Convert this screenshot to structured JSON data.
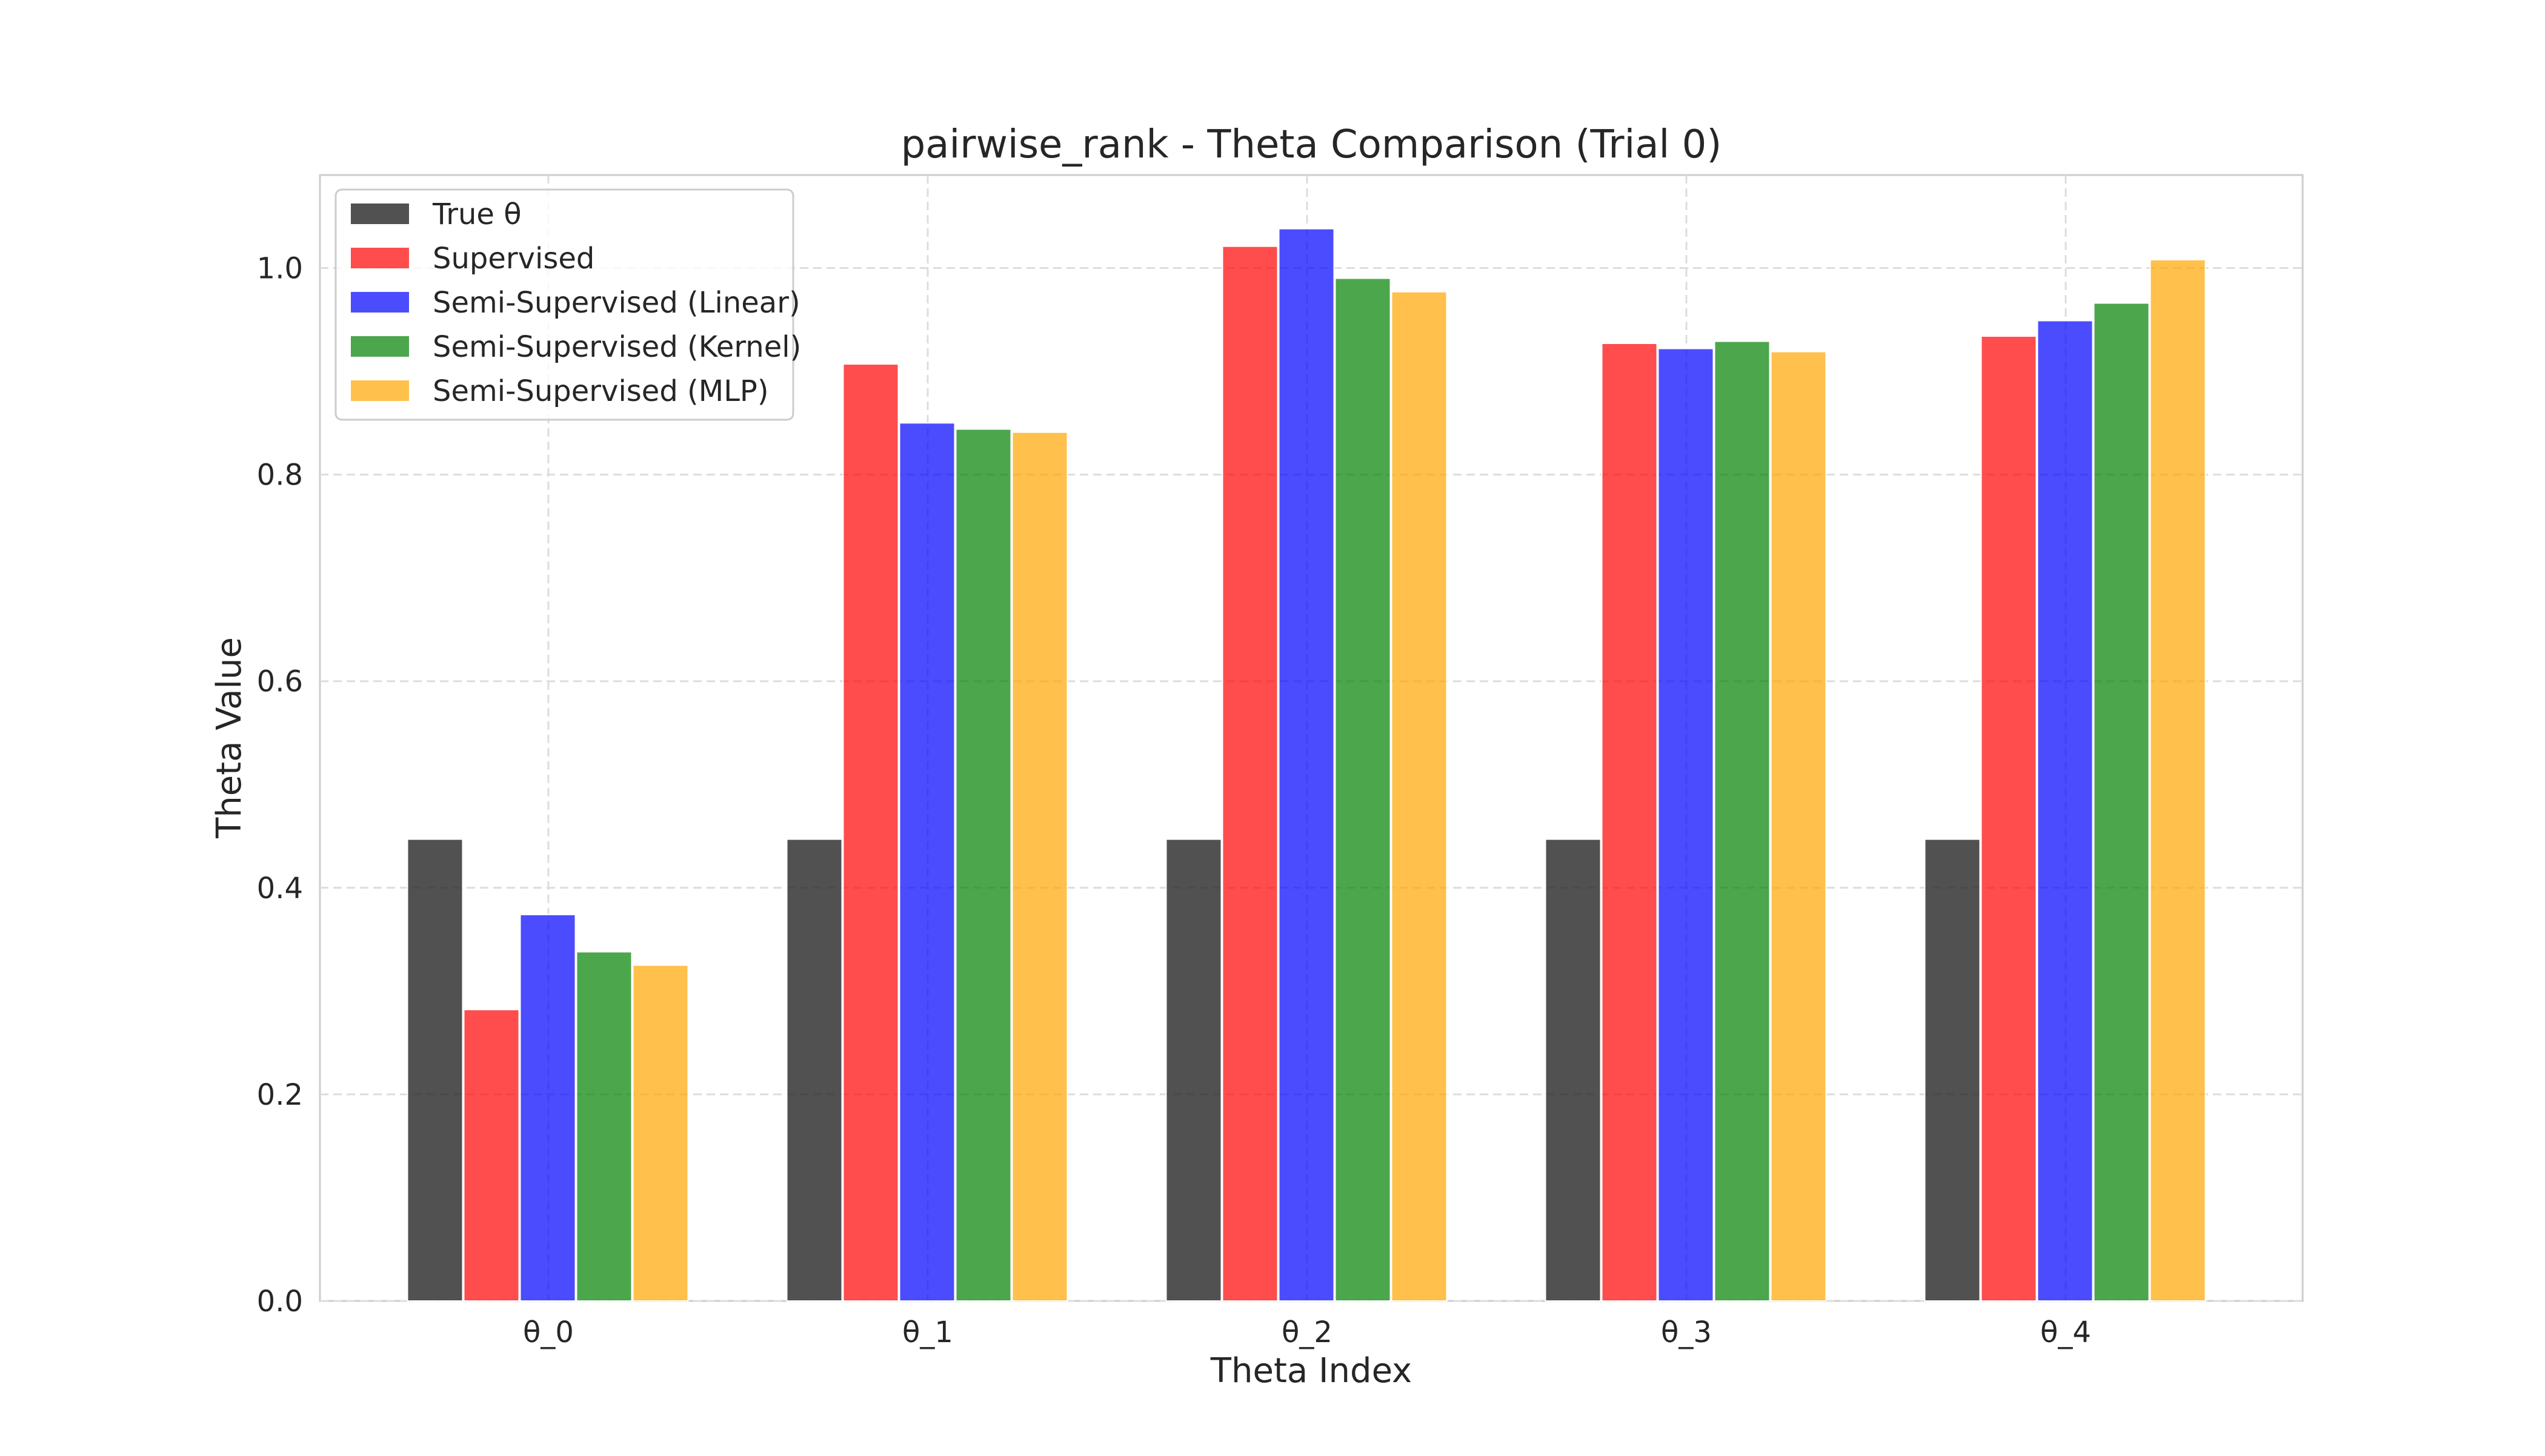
{
  "chart_data": {
    "type": "bar",
    "title": "pairwise_rank - Theta Comparison (Trial 0)",
    "xlabel": "Theta Index",
    "ylabel": "Theta Value",
    "ylim": [
      0,
      1.09
    ],
    "yticks": [
      0.0,
      0.2,
      0.4,
      0.6,
      0.8,
      1.0
    ],
    "ytick_labels": [
      "0.0",
      "0.2",
      "0.4",
      "0.6",
      "0.8",
      "1.0"
    ],
    "categories": [
      "θ_0",
      "θ_1",
      "θ_2",
      "θ_3",
      "θ_4"
    ],
    "grid": true,
    "legend_position": "upper-left",
    "series": [
      {
        "name": "True θ",
        "color": "#262626",
        "opacity": 0.8,
        "values": [
          0.447,
          0.447,
          0.447,
          0.447,
          0.447
        ]
      },
      {
        "name": "Supervised",
        "color": "#ff0000",
        "opacity": 0.7,
        "values": [
          0.282,
          0.907,
          1.021,
          0.927,
          0.934
        ]
      },
      {
        "name": "Semi-Supervised (Linear)",
        "color": "#0000ff",
        "opacity": 0.7,
        "values": [
          0.374,
          0.85,
          1.038,
          0.922,
          0.949
        ]
      },
      {
        "name": "Semi-Supervised (Kernel)",
        "color": "#008000",
        "opacity": 0.7,
        "values": [
          0.338,
          0.844,
          0.99,
          0.929,
          0.966
        ]
      },
      {
        "name": "Semi-Supervised (MLP)",
        "color": "#ffa500",
        "opacity": 0.7,
        "values": [
          0.325,
          0.841,
          0.977,
          0.919,
          1.008
        ]
      }
    ]
  }
}
